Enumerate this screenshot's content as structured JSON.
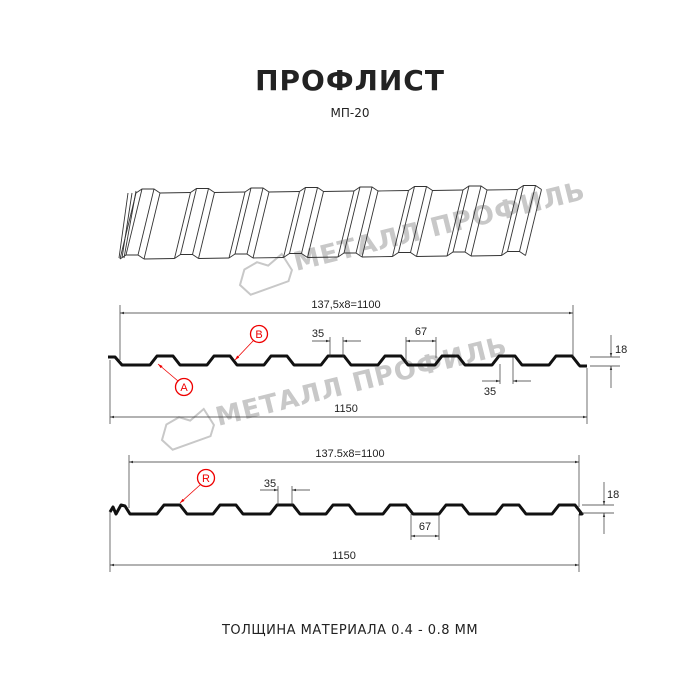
{
  "header": {
    "title": "ПРОФЛИСТ",
    "subtitle": "МП-20"
  },
  "watermark": {
    "text": "МЕТАЛЛ ПРОФИЛЬ",
    "color": "#c8c8c8"
  },
  "profile_a": {
    "pitch_label": "137,5x8=1100",
    "width_label": "1150",
    "top_width_label": "35",
    "bottom_width_label": "35",
    "rib_base_label": "67",
    "height_label": "18",
    "callout_a": "A",
    "callout_b": "B"
  },
  "profile_r": {
    "pitch_label": "137.5x8=1100",
    "width_label": "1150",
    "top_width_label": "35",
    "rib_base_label": "67",
    "height_label": "18",
    "callout_r": "R"
  },
  "footer": {
    "thickness": "ТОЛЩИНА МАТЕРИАЛА 0.4 - 0.8 ММ"
  },
  "colors": {
    "profile": "#111111",
    "callout": "#e00000",
    "dimension": "#333333"
  }
}
